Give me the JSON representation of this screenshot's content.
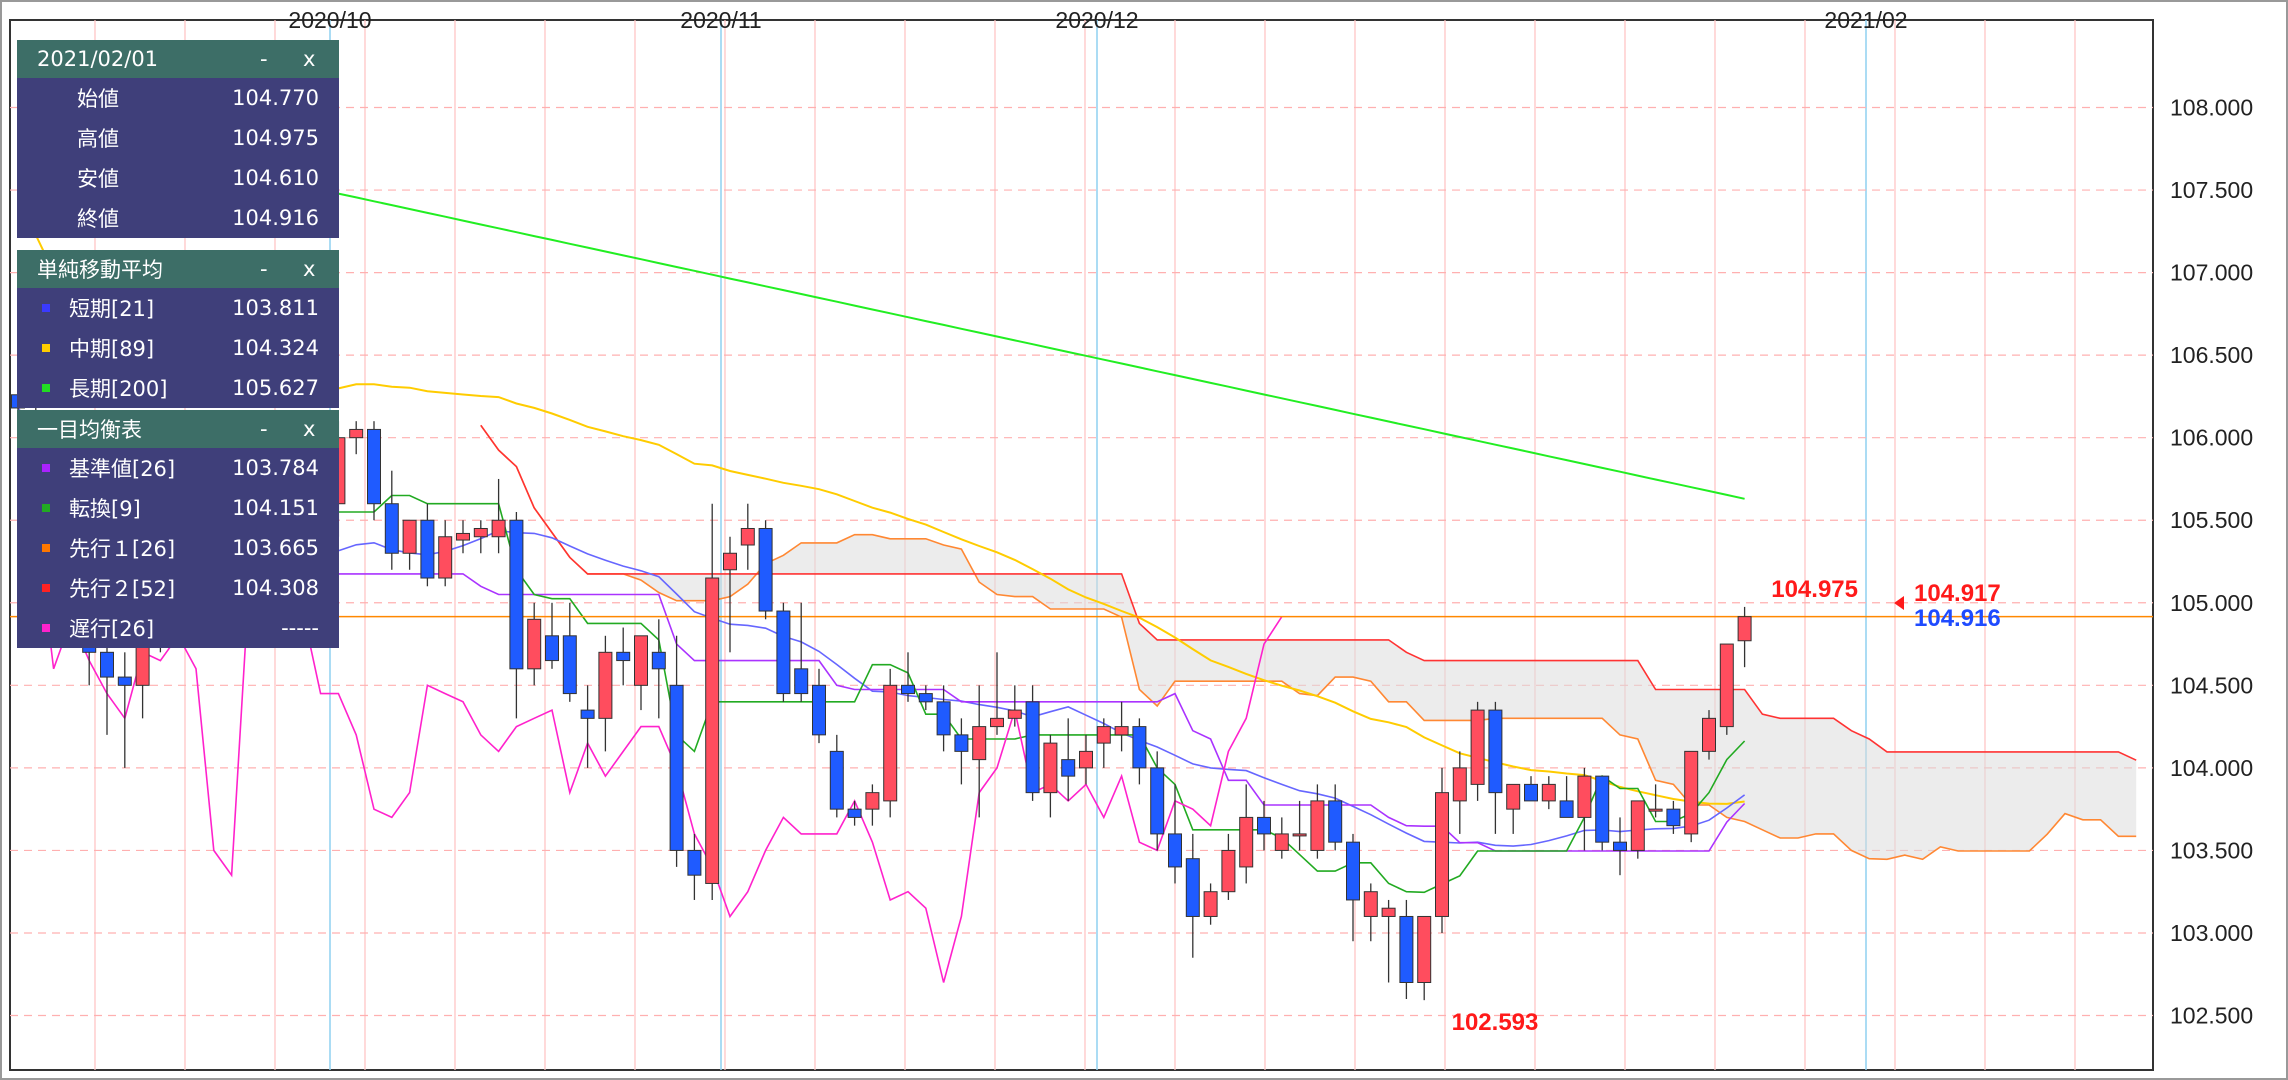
{
  "ohlc_panel": {
    "date": "2021/02/01",
    "rows": [
      {
        "label": "始値",
        "value": "104.770"
      },
      {
        "label": "高値",
        "value": "104.975"
      },
      {
        "label": "安値",
        "value": "104.610"
      },
      {
        "label": "終値",
        "value": "104.916"
      }
    ]
  },
  "sma_panel": {
    "title": "単純移動平均",
    "rows": [
      {
        "label": "短期[21]",
        "value": "103.811",
        "color": "#3a3aff"
      },
      {
        "label": "中期[89]",
        "value": "104.324",
        "color": "#ffcc00"
      },
      {
        "label": "長期[200]",
        "value": "105.627",
        "color": "#22dd22"
      }
    ]
  },
  "ichimoku_panel": {
    "title": "一目均衡表",
    "rows": [
      {
        "label": "基準値[26]",
        "value": "103.784",
        "color": "#aa22ff"
      },
      {
        "label": "転換[9]",
        "value": "104.151",
        "color": "#22aa22"
      },
      {
        "label": "先行１[26]",
        "value": "103.665",
        "color": "#ff7700"
      },
      {
        "label": "先行２[52]",
        "value": "104.308",
        "color": "#ff2222"
      },
      {
        "label": "遅行[26]",
        "value": "-----",
        "color": "#ff22cc"
      }
    ]
  },
  "controls": {
    "minimize": "-",
    "close": "x"
  },
  "chart_data": {
    "type": "candlestick",
    "x_labels": [
      "2020/10",
      "2020/11",
      "2020/12",
      "2021/02"
    ],
    "y_ticks": [
      "108.000",
      "107.500",
      "107.000",
      "106.500",
      "106.000",
      "105.500",
      "105.000",
      "104.500",
      "104.000",
      "103.500",
      "103.000",
      "102.500"
    ],
    "ylim": [
      102.17,
      108.53
    ],
    "grid": true,
    "annotations": {
      "high_label": "104.975",
      "low_label": "102.593",
      "last_high": "104.917",
      "last_close": "104.916"
    },
    "colors": {
      "up": "#ff4d5e",
      "down": "#1f5bff",
      "short": "#6666ff",
      "mid": "#ffcc00",
      "long": "#22ee22",
      "kijun": "#aa33ff",
      "tenkan": "#22aa22",
      "span_a": "#ff8833",
      "span_b": "#ff3333",
      "chikou": "#ff22cc",
      "current_line": "#ff8800"
    },
    "candles": [
      {
        "o": 106.26,
        "h": 106.35,
        "l": 105.8,
        "c": 106.18
      },
      {
        "o": 106.1,
        "h": 106.2,
        "l": 105.5,
        "c": 105.9
      },
      {
        "o": 105.8,
        "h": 105.9,
        "l": 105.3,
        "c": 105.4
      },
      {
        "o": 105.3,
        "h": 105.4,
        "l": 104.8,
        "c": 104.95
      },
      {
        "o": 104.9,
        "h": 105.0,
        "l": 104.5,
        "c": 104.7
      },
      {
        "o": 104.7,
        "h": 104.8,
        "l": 104.2,
        "c": 104.55
      },
      {
        "o": 104.55,
        "h": 104.7,
        "l": 104.0,
        "c": 104.5
      },
      {
        "o": 104.5,
        "h": 104.9,
        "l": 104.3,
        "c": 104.85
      },
      {
        "o": 104.85,
        "h": 105.1,
        "l": 104.7,
        "c": 105.0
      },
      {
        "o": 105.0,
        "h": 105.3,
        "l": 104.9,
        "c": 105.2
      },
      {
        "o": 105.2,
        "h": 105.6,
        "l": 105.1,
        "c": 105.5
      },
      {
        "o": 105.5,
        "h": 105.7,
        "l": 105.2,
        "c": 105.3
      },
      {
        "o": 105.4,
        "h": 105.6,
        "l": 105.0,
        "c": 105.5
      },
      {
        "o": 105.5,
        "h": 105.7,
        "l": 105.2,
        "c": 105.4
      },
      {
        "o": 105.6,
        "h": 105.8,
        "l": 105.3,
        "c": 105.4
      },
      {
        "o": 105.45,
        "h": 105.6,
        "l": 105.3,
        "c": 105.35
      },
      {
        "o": 105.4,
        "h": 105.9,
        "l": 105.3,
        "c": 105.7
      },
      {
        "o": 105.65,
        "h": 105.75,
        "l": 105.5,
        "c": 105.6
      },
      {
        "o": 105.6,
        "h": 106.1,
        "l": 105.4,
        "c": 106.0
      },
      {
        "o": 106.0,
        "h": 106.1,
        "l": 105.9,
        "c": 106.05
      },
      {
        "o": 106.05,
        "h": 106.1,
        "l": 105.5,
        "c": 105.6
      },
      {
        "o": 105.6,
        "h": 105.8,
        "l": 105.2,
        "c": 105.3
      },
      {
        "o": 105.3,
        "h": 105.5,
        "l": 105.2,
        "c": 105.5
      },
      {
        "o": 105.5,
        "h": 105.6,
        "l": 105.1,
        "c": 105.15
      },
      {
        "o": 105.15,
        "h": 105.5,
        "l": 105.1,
        "c": 105.4
      },
      {
        "o": 105.38,
        "h": 105.5,
        "l": 105.3,
        "c": 105.42
      },
      {
        "o": 105.4,
        "h": 105.5,
        "l": 105.3,
        "c": 105.45
      },
      {
        "o": 105.4,
        "h": 105.75,
        "l": 105.3,
        "c": 105.5
      },
      {
        "o": 105.5,
        "h": 105.55,
        "l": 104.3,
        "c": 104.6
      },
      {
        "o": 104.6,
        "h": 105.0,
        "l": 104.5,
        "c": 104.9
      },
      {
        "o": 104.8,
        "h": 105.0,
        "l": 104.6,
        "c": 104.65
      },
      {
        "o": 104.8,
        "h": 105.0,
        "l": 104.4,
        "c": 104.45
      },
      {
        "o": 104.35,
        "h": 104.5,
        "l": 104.0,
        "c": 104.3
      },
      {
        "o": 104.3,
        "h": 104.8,
        "l": 104.1,
        "c": 104.7
      },
      {
        "o": 104.7,
        "h": 104.85,
        "l": 104.5,
        "c": 104.65
      },
      {
        "o": 104.5,
        "h": 104.8,
        "l": 104.35,
        "c": 104.8
      },
      {
        "o": 104.7,
        "h": 104.9,
        "l": 104.3,
        "c": 104.6
      },
      {
        "o": 104.5,
        "h": 104.8,
        "l": 103.4,
        "c": 103.5
      },
      {
        "o": 103.5,
        "h": 103.6,
        "l": 103.2,
        "c": 103.35
      },
      {
        "o": 103.3,
        "h": 105.6,
        "l": 103.2,
        "c": 105.15
      },
      {
        "o": 105.2,
        "h": 105.4,
        "l": 104.7,
        "c": 105.3
      },
      {
        "o": 105.35,
        "h": 105.6,
        "l": 105.2,
        "c": 105.45
      },
      {
        "o": 105.45,
        "h": 105.5,
        "l": 104.9,
        "c": 104.95
      },
      {
        "o": 104.95,
        "h": 105.0,
        "l": 104.4,
        "c": 104.45
      },
      {
        "o": 104.6,
        "h": 105.0,
        "l": 104.4,
        "c": 104.45
      },
      {
        "o": 104.5,
        "h": 104.6,
        "l": 104.15,
        "c": 104.2
      },
      {
        "o": 104.1,
        "h": 104.2,
        "l": 103.7,
        "c": 103.75
      },
      {
        "o": 103.75,
        "h": 103.8,
        "l": 103.65,
        "c": 103.7
      },
      {
        "o": 103.75,
        "h": 103.9,
        "l": 103.65,
        "c": 103.85
      },
      {
        "o": 103.8,
        "h": 104.6,
        "l": 103.7,
        "c": 104.5
      },
      {
        "o": 104.5,
        "h": 104.7,
        "l": 104.4,
        "c": 104.45
      },
      {
        "o": 104.45,
        "h": 104.5,
        "l": 104.35,
        "c": 104.4
      },
      {
        "o": 104.4,
        "h": 104.5,
        "l": 104.1,
        "c": 104.2
      },
      {
        "o": 104.2,
        "h": 104.3,
        "l": 103.9,
        "c": 104.1
      },
      {
        "o": 104.05,
        "h": 104.5,
        "l": 103.7,
        "c": 104.25
      },
      {
        "o": 104.25,
        "h": 104.7,
        "l": 104.2,
        "c": 104.3
      },
      {
        "o": 104.3,
        "h": 104.5,
        "l": 104.25,
        "c": 104.35
      },
      {
        "o": 104.4,
        "h": 104.5,
        "l": 103.8,
        "c": 103.85
      },
      {
        "o": 103.85,
        "h": 104.2,
        "l": 103.7,
        "c": 104.15
      },
      {
        "o": 104.05,
        "h": 104.3,
        "l": 103.8,
        "c": 103.95
      },
      {
        "o": 104.0,
        "h": 104.2,
        "l": 103.9,
        "c": 104.1
      },
      {
        "o": 104.15,
        "h": 104.3,
        "l": 104.0,
        "c": 104.25
      },
      {
        "o": 104.2,
        "h": 104.4,
        "l": 104.1,
        "c": 104.25
      },
      {
        "o": 104.25,
        "h": 104.3,
        "l": 103.9,
        "c": 104.0
      },
      {
        "o": 104.0,
        "h": 104.1,
        "l": 103.5,
        "c": 103.6
      },
      {
        "o": 103.6,
        "h": 103.9,
        "l": 103.3,
        "c": 103.4
      },
      {
        "o": 103.45,
        "h": 103.6,
        "l": 102.85,
        "c": 103.1
      },
      {
        "o": 103.1,
        "h": 103.3,
        "l": 103.05,
        "c": 103.25
      },
      {
        "o": 103.25,
        "h": 103.6,
        "l": 103.2,
        "c": 103.5
      },
      {
        "o": 103.4,
        "h": 103.9,
        "l": 103.3,
        "c": 103.7
      },
      {
        "o": 103.7,
        "h": 103.8,
        "l": 103.5,
        "c": 103.6
      },
      {
        "o": 103.5,
        "h": 103.7,
        "l": 103.45,
        "c": 103.6
      },
      {
        "o": 103.6,
        "h": 103.8,
        "l": 103.5,
        "c": 103.6
      },
      {
        "o": 103.5,
        "h": 103.9,
        "l": 103.45,
        "c": 103.8
      },
      {
        "o": 103.8,
        "h": 103.9,
        "l": 103.5,
        "c": 103.55
      },
      {
        "o": 103.55,
        "h": 103.6,
        "l": 102.95,
        "c": 103.2
      },
      {
        "o": 103.1,
        "h": 103.3,
        "l": 102.95,
        "c": 103.25
      },
      {
        "o": 103.1,
        "h": 103.2,
        "l": 102.7,
        "c": 103.15
      },
      {
        "o": 103.1,
        "h": 103.2,
        "l": 102.6,
        "c": 102.7
      },
      {
        "o": 102.7,
        "h": 103.1,
        "l": 102.593,
        "c": 103.1
      },
      {
        "o": 103.1,
        "h": 104.0,
        "l": 103.0,
        "c": 103.85
      },
      {
        "o": 103.8,
        "h": 104.1,
        "l": 103.6,
        "c": 104.0
      },
      {
        "o": 103.9,
        "h": 104.4,
        "l": 103.8,
        "c": 104.35
      },
      {
        "o": 104.35,
        "h": 104.4,
        "l": 103.6,
        "c": 103.85
      },
      {
        "o": 103.75,
        "h": 103.9,
        "l": 103.6,
        "c": 103.9
      },
      {
        "o": 103.9,
        "h": 103.95,
        "l": 103.8,
        "c": 103.8
      },
      {
        "o": 103.8,
        "h": 103.95,
        "l": 103.75,
        "c": 103.9
      },
      {
        "o": 103.8,
        "h": 103.95,
        "l": 103.7,
        "c": 103.7
      },
      {
        "o": 103.7,
        "h": 104.0,
        "l": 103.5,
        "c": 103.95
      },
      {
        "o": 103.95,
        "h": 103.95,
        "l": 103.5,
        "c": 103.55
      },
      {
        "o": 103.55,
        "h": 103.7,
        "l": 103.35,
        "c": 103.5
      },
      {
        "o": 103.5,
        "h": 103.8,
        "l": 103.45,
        "c": 103.8
      },
      {
        "o": 103.75,
        "h": 103.9,
        "l": 103.7,
        "c": 103.75
      },
      {
        "o": 103.75,
        "h": 103.8,
        "l": 103.6,
        "c": 103.65
      },
      {
        "o": 103.6,
        "h": 104.1,
        "l": 103.55,
        "c": 104.1
      },
      {
        "o": 104.1,
        "h": 104.35,
        "l": 104.05,
        "c": 104.3
      },
      {
        "o": 104.25,
        "h": 104.75,
        "l": 104.2,
        "c": 104.75
      },
      {
        "o": 104.77,
        "h": 104.975,
        "l": 104.61,
        "c": 104.916
      }
    ]
  }
}
